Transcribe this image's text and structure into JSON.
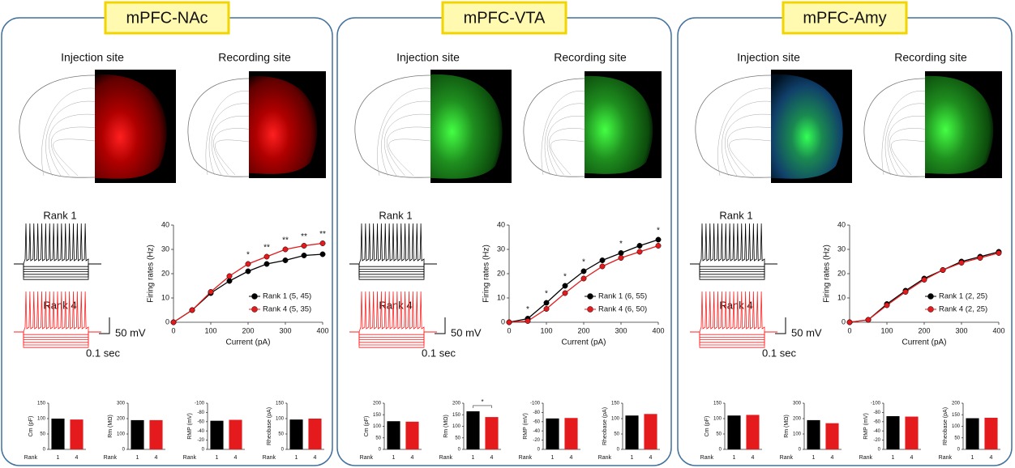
{
  "panels": [
    {
      "title": "mPFC-NAc",
      "injection": "Injection site",
      "recording": "Recording site",
      "rank1": "Rank 1",
      "rank4": "Rank 4",
      "scale_v": "50 mV",
      "scale_t": "0.1 sec"
    },
    {
      "title": "mPFC-VTA",
      "injection": "Injection site",
      "recording": "Recording site",
      "rank1": "Rank 1",
      "rank4": "Rank 4",
      "scale_v": "50 mV",
      "scale_t": "0.1 sec"
    },
    {
      "title": "mPFC-Amy",
      "injection": "Injection site",
      "recording": "Recording site",
      "rank1": "Rank 1",
      "rank4": "Rank 4",
      "scale_v": "50 mV",
      "scale_t": "0.1 sec"
    }
  ],
  "chart_data": [
    {
      "type": "line",
      "xlabel": "Current (pA)",
      "ylabel": "Firing rates (Hz)",
      "x": [
        0,
        50,
        100,
        150,
        200,
        250,
        300,
        350,
        400
      ],
      "xlim": [
        0,
        400
      ],
      "ylim": [
        0,
        40
      ],
      "xticks": [
        0,
        100,
        200,
        300,
        400
      ],
      "yticks": [
        0,
        10,
        20,
        30,
        40
      ],
      "series": [
        {
          "name": "Rank 1 (5, 45)",
          "color": "#000000",
          "values": [
            0,
            5,
            12,
            17,
            21,
            24,
            25.5,
            27.5,
            28
          ]
        },
        {
          "name": "Rank 4 (5, 35)",
          "color": "#e41a1c",
          "values": [
            0,
            5,
            12.5,
            19,
            24,
            27,
            30,
            31.5,
            32.5
          ]
        }
      ],
      "annotations": [
        {
          "x": 200,
          "label": "*"
        },
        {
          "x": 250,
          "label": "**"
        },
        {
          "x": 300,
          "label": "**"
        },
        {
          "x": 350,
          "label": "**"
        },
        {
          "x": 400,
          "label": "**"
        }
      ]
    },
    {
      "type": "bar",
      "xlabel": "Rank",
      "ylabel": "Cm (pF)",
      "categories": [
        "1",
        "4"
      ],
      "values": [
        100,
        97
      ],
      "colors": [
        "#000000",
        "#e41a1c"
      ],
      "ylim": [
        0,
        150
      ],
      "yticks": [
        0,
        50,
        100,
        150
      ]
    },
    {
      "type": "bar",
      "xlabel": "Rank",
      "ylabel": "Rm (MΩ)",
      "categories": [
        "1",
        "4"
      ],
      "values": [
        190,
        190
      ],
      "colors": [
        "#000000",
        "#e41a1c"
      ],
      "ylim": [
        0,
        300
      ],
      "yticks": [
        0,
        100,
        200,
        300
      ]
    },
    {
      "type": "bar",
      "xlabel": "Rank",
      "ylabel": "RMP (mV)",
      "categories": [
        "1",
        "4"
      ],
      "values": [
        -62,
        -64
      ],
      "colors": [
        "#000000",
        "#e41a1c"
      ],
      "ylim": [
        0,
        -100
      ],
      "yticks": [
        0,
        -20,
        -40,
        -60,
        -80,
        -100
      ]
    },
    {
      "type": "bar",
      "xlabel": "Rank",
      "ylabel": "Rheobase (pA)",
      "categories": [
        "1",
        "4"
      ],
      "values": [
        97,
        100
      ],
      "colors": [
        "#000000",
        "#e41a1c"
      ],
      "ylim": [
        0,
        150
      ],
      "yticks": [
        0,
        50,
        100,
        150
      ]
    },
    {
      "type": "line",
      "xlabel": "Current (pA)",
      "ylabel": "Firing rates (Hz)",
      "x": [
        0,
        50,
        100,
        150,
        200,
        250,
        300,
        350,
        400
      ],
      "xlim": [
        0,
        400
      ],
      "ylim": [
        0,
        40
      ],
      "xticks": [
        0,
        100,
        200,
        300,
        400
      ],
      "yticks": [
        0,
        10,
        20,
        30,
        40
      ],
      "series": [
        {
          "name": "Rank 1 (6, 55)",
          "color": "#000000",
          "values": [
            0,
            1.5,
            8,
            15,
            21,
            25.5,
            28.5,
            31.5,
            34
          ]
        },
        {
          "name": "Rank 4 (6, 50)",
          "color": "#e41a1c",
          "values": [
            0,
            0.5,
            5.5,
            12,
            18,
            23,
            26.5,
            29,
            31.5
          ]
        }
      ],
      "annotations": [
        {
          "x": 50,
          "label": "*"
        },
        {
          "x": 100,
          "label": "*"
        },
        {
          "x": 150,
          "label": "*"
        },
        {
          "x": 200,
          "label": "*"
        },
        {
          "x": 300,
          "label": "*"
        },
        {
          "x": 400,
          "label": "*"
        }
      ]
    },
    {
      "type": "bar",
      "xlabel": "Rank",
      "ylabel": "Cm (pF)",
      "categories": [
        "1",
        "4"
      ],
      "values": [
        122,
        120
      ],
      "colors": [
        "#000000",
        "#e41a1c"
      ],
      "ylim": [
        0,
        200
      ],
      "yticks": [
        0,
        50,
        100,
        150,
        200
      ]
    },
    {
      "type": "bar",
      "xlabel": "Rank",
      "ylabel": "Rm (MΩ)",
      "categories": [
        "1",
        "4"
      ],
      "values": [
        165,
        140
      ],
      "colors": [
        "#000000",
        "#e41a1c"
      ],
      "ylim": [
        0,
        200
      ],
      "yticks": [
        0,
        50,
        100,
        150,
        200
      ],
      "significance": "*"
    },
    {
      "type": "bar",
      "xlabel": "Rank",
      "ylabel": "RMP (mV)",
      "categories": [
        "1",
        "4"
      ],
      "values": [
        -67,
        -68
      ],
      "colors": [
        "#000000",
        "#e41a1c"
      ],
      "ylim": [
        0,
        -100
      ],
      "yticks": [
        0,
        -20,
        -40,
        -60,
        -80,
        -100
      ]
    },
    {
      "type": "bar",
      "xlabel": "Rank",
      "ylabel": "Rheobase (pA)",
      "categories": [
        "1",
        "4"
      ],
      "values": [
        110,
        115
      ],
      "colors": [
        "#000000",
        "#e41a1c"
      ],
      "ylim": [
        0,
        150
      ],
      "yticks": [
        0,
        50,
        100,
        150
      ]
    },
    {
      "type": "line",
      "xlabel": "Current (pA)",
      "ylabel": "Firing rates (Hz)",
      "x": [
        0,
        50,
        100,
        150,
        200,
        250,
        300,
        350,
        400
      ],
      "xlim": [
        0,
        400
      ],
      "ylim": [
        0,
        40
      ],
      "xticks": [
        0,
        100,
        200,
        300,
        400
      ],
      "yticks": [
        0,
        10,
        20,
        30,
        40
      ],
      "series": [
        {
          "name": "Rank 1 (2, 25)",
          "color": "#000000",
          "values": [
            0,
            1,
            7.5,
            13,
            18,
            21.5,
            25,
            27,
            29
          ]
        },
        {
          "name": "Rank 4 (2, 25)",
          "color": "#e41a1c",
          "values": [
            0,
            1,
            7,
            12.5,
            17.5,
            21.5,
            24.5,
            26.5,
            28.5
          ]
        }
      ],
      "annotations": []
    },
    {
      "type": "bar",
      "xlabel": "Rank",
      "ylabel": "Cm (pF)",
      "categories": [
        "1",
        "4"
      ],
      "values": [
        110,
        112
      ],
      "colors": [
        "#000000",
        "#e41a1c"
      ],
      "ylim": [
        0,
        150
      ],
      "yticks": [
        0,
        50,
        100,
        150
      ]
    },
    {
      "type": "bar",
      "xlabel": "Rank",
      "ylabel": "Rm (MΩ)",
      "categories": [
        "1",
        "4"
      ],
      "values": [
        190,
        170
      ],
      "colors": [
        "#000000",
        "#e41a1c"
      ],
      "ylim": [
        0,
        300
      ],
      "yticks": [
        0,
        100,
        200,
        300
      ]
    },
    {
      "type": "bar",
      "xlabel": "Rank",
      "ylabel": "RMP (mV)",
      "categories": [
        "1",
        "4"
      ],
      "values": [
        -72,
        -71
      ],
      "colors": [
        "#000000",
        "#e41a1c"
      ],
      "ylim": [
        0,
        -100
      ],
      "yticks": [
        0,
        -20,
        -40,
        -60,
        -80,
        -100
      ]
    },
    {
      "type": "bar",
      "xlabel": "Rank",
      "ylabel": "Rheobase (pA)",
      "categories": [
        "1",
        "4"
      ],
      "values": [
        135,
        137
      ],
      "colors": [
        "#000000",
        "#e41a1c"
      ],
      "ylim": [
        0,
        200
      ],
      "yticks": [
        0,
        50,
        100,
        150,
        200
      ]
    }
  ]
}
